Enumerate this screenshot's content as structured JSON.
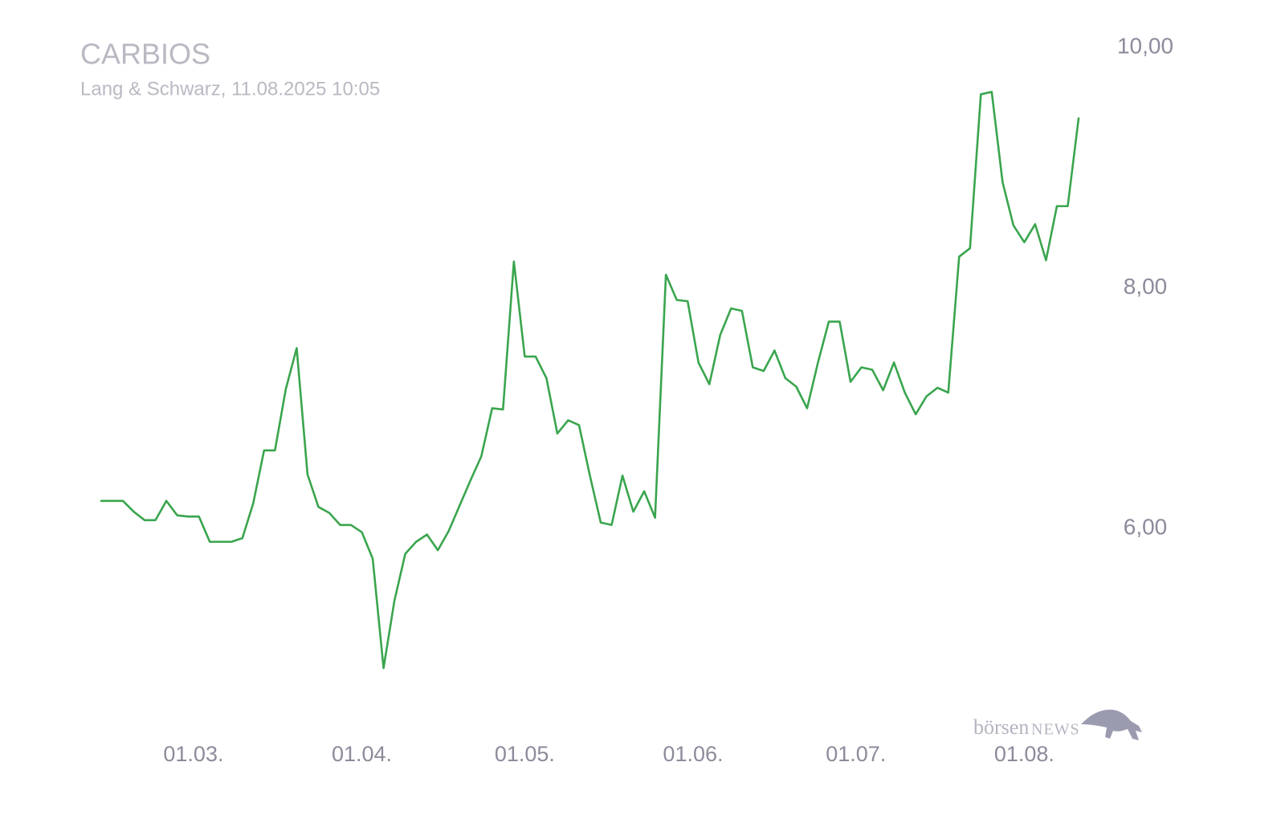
{
  "chart_data": {
    "type": "line",
    "title": "CARBIOS",
    "subtitle": "Lang & Schwarz, 11.08.2025 10:05",
    "watermark": [
      "börsen",
      "NEWS"
    ],
    "color": "#3aa54e",
    "x": [
      "12.02.",
      "16.02.",
      "18.02.",
      "20.02.",
      "22.02.",
      "24.02.",
      "26.02.",
      "28.02.",
      "02.03.",
      "04.03.",
      "06.03.",
      "08.03.",
      "10.03.",
      "12.03.",
      "14.03.",
      "16.03.",
      "18.03.",
      "20.03.",
      "22.03.",
      "24.03.",
      "26.03.",
      "28.03.",
      "30.03.",
      "01.04.",
      "03.04.",
      "05.04.",
      "07.04.",
      "09.04.",
      "11.04.",
      "13.04.",
      "15.04.",
      "17.04.",
      "19.04.",
      "21.04.",
      "23.04.",
      "25.04.",
      "27.04.",
      "29.04.",
      "01.05.",
      "03.05.",
      "05.05.",
      "07.05.",
      "09.05.",
      "11.05.",
      "13.05.",
      "15.05.",
      "17.05.",
      "19.05.",
      "21.05.",
      "23.05.",
      "25.05.",
      "27.05.",
      "29.05.",
      "31.05.",
      "02.06.",
      "04.06.",
      "06.06.",
      "08.06.",
      "10.06.",
      "12.06.",
      "14.06.",
      "16.06.",
      "18.06.",
      "20.06.",
      "22.06.",
      "24.06.",
      "26.06.",
      "28.06.",
      "30.06.",
      "02.07.",
      "04.07.",
      "06.07.",
      "08.07.",
      "10.07.",
      "12.07.",
      "14.07.",
      "16.07.",
      "18.07.",
      "20.07.",
      "22.07.",
      "24.07.",
      "26.07.",
      "28.07.",
      "30.07.",
      "01.08.",
      "03.08.",
      "05.08.",
      "07.08.",
      "09.08.",
      "11.08."
    ],
    "values": [
      6.23,
      6.23,
      6.14,
      6.07,
      6.07,
      6.23,
      6.11,
      6.1,
      6.1,
      5.89,
      5.89,
      5.89,
      5.92,
      6.21,
      6.65,
      6.65,
      7.16,
      7.5,
      6.45,
      6.18,
      6.13,
      6.03,
      6.03,
      5.97,
      5.75,
      4.84,
      5.4,
      5.79,
      5.89,
      5.95,
      5.82,
      5.98,
      6.19,
      6.4,
      6.6,
      7.0,
      6.99,
      8.22,
      7.43,
      7.43,
      7.25,
      6.79,
      6.9,
      6.86,
      6.44,
      6.05,
      6.03,
      6.44,
      6.14,
      6.31,
      6.09,
      8.11,
      7.9,
      7.89,
      7.38,
      7.2,
      7.61,
      7.83,
      7.81,
      7.34,
      7.31,
      7.48,
      7.25,
      7.18,
      7.0,
      7.38,
      7.72,
      7.72,
      7.22,
      7.34,
      7.32,
      7.15,
      7.38,
      7.13,
      6.95,
      7.1,
      7.17,
      7.13,
      8.26,
      8.33,
      9.61,
      9.63,
      8.88,
      8.52,
      8.38,
      8.53,
      8.23,
      8.68,
      8.68,
      9.41
    ],
    "xlim": [
      "12.02.",
      "11.08."
    ],
    "xticks": [
      "01.03.",
      "01.04.",
      "01.05.",
      "01.06.",
      "01.07.",
      "01.08."
    ],
    "ylim": [
      4.5,
      10.0
    ],
    "yticks": [
      {
        "value": 6,
        "label": "6,00"
      },
      {
        "value": 8,
        "label": "8,00"
      },
      {
        "value": 10,
        "label": "10,00"
      }
    ],
    "grid": false
  }
}
